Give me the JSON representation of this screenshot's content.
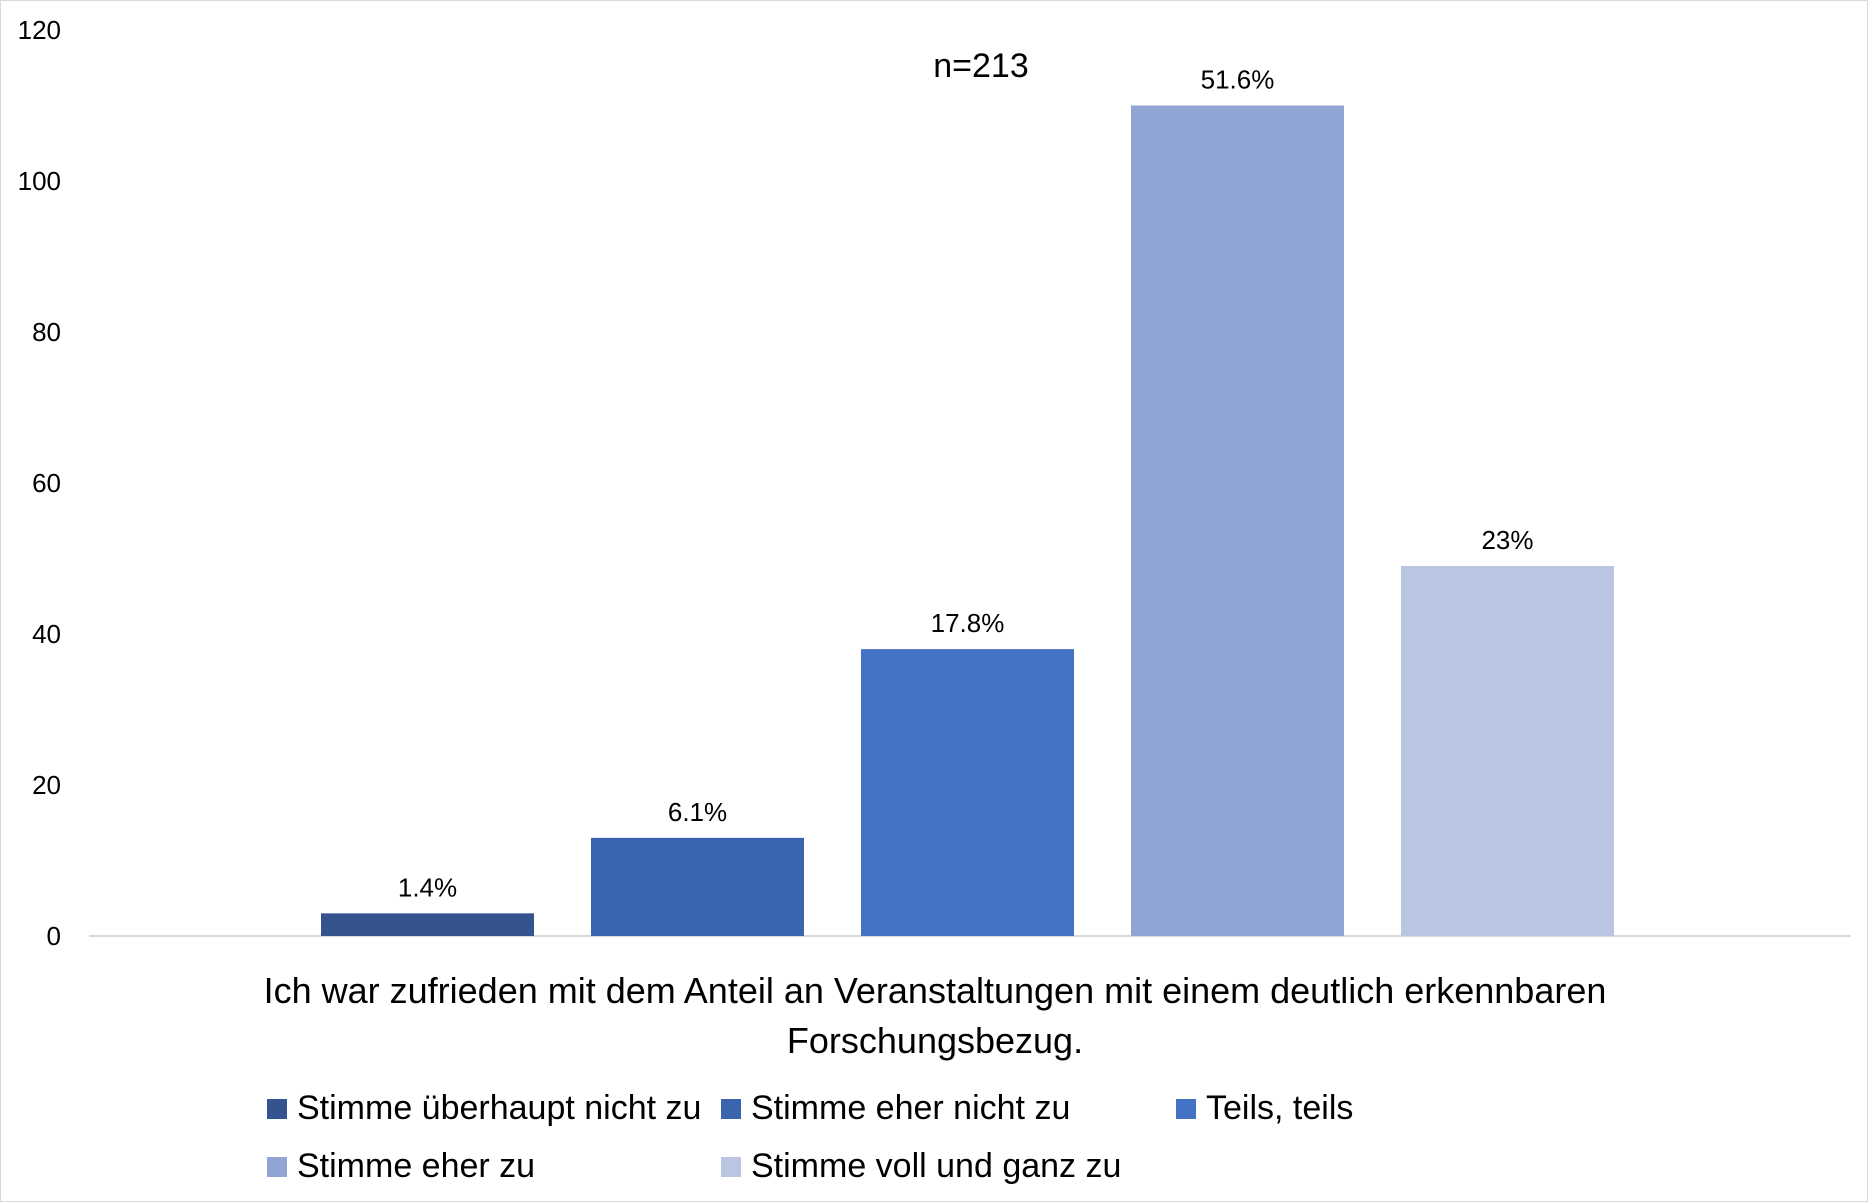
{
  "chart_data": {
    "type": "bar",
    "annotation": "n=213",
    "xlabel_lines": [
      "Ich war zufrieden mit dem Anteil an Veranstaltungen mit einem deutlich erkennbaren",
      "Forschungsbezug."
    ],
    "ylabel": "",
    "ylim": [
      0,
      120
    ],
    "yticks": [
      "0",
      "20",
      "40",
      "60",
      "80",
      "100",
      "120"
    ],
    "series": [
      {
        "name": "Stimme überhaupt nicht zu",
        "value": 3,
        "label": "1.4%",
        "color": "#34538f"
      },
      {
        "name": "Stimme eher nicht zu",
        "value": 13,
        "label": "6.1%",
        "color": "#3a64ad"
      },
      {
        "name": "Teils, teils",
        "value": 38,
        "label": "17.8%",
        "color": "#4472c4"
      },
      {
        "name": "Stimme eher zu",
        "value": 110,
        "label": "51.6%",
        "color": "#91a5d4"
      },
      {
        "name": "Stimme voll und ganz zu",
        "value": 49,
        "label": "23%",
        "color": "#bac5e2"
      }
    ],
    "grid": false,
    "legend_position": "bottom"
  }
}
